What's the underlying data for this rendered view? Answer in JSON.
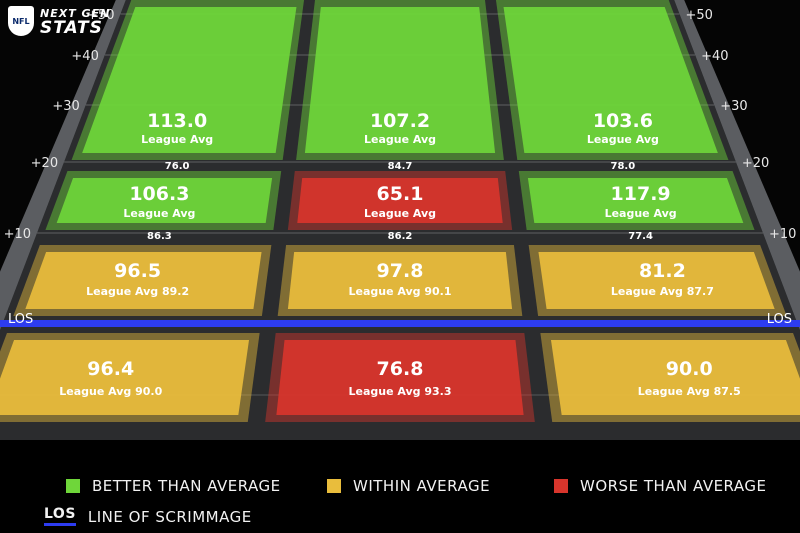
{
  "brand": {
    "logo_text": "NFL",
    "line1": "NEXT GEN",
    "line2": "STATS"
  },
  "chart_data": {
    "type": "heatmap",
    "title": "",
    "yard_markers": [
      "+50",
      "+40",
      "+30",
      "+20",
      "+10"
    ],
    "los_label": "LOS",
    "rows": [
      {
        "band": "+20 to +50",
        "zones": [
          {
            "value": "113.0",
            "league_label": "League Avg",
            "league_value": "76.0",
            "rating": "better"
          },
          {
            "value": "107.2",
            "league_label": "League Avg",
            "league_value": "84.7",
            "rating": "better"
          },
          {
            "value": "103.6",
            "league_label": "League Avg",
            "league_value": "78.0",
            "rating": "better"
          }
        ]
      },
      {
        "band": "+10 to +20",
        "zones": [
          {
            "value": "106.3",
            "league_label": "League Avg",
            "league_value": "86.3",
            "rating": "better"
          },
          {
            "value": "65.1",
            "league_label": "League Avg",
            "league_value": "86.2",
            "rating": "worse"
          },
          {
            "value": "117.9",
            "league_label": "League Avg",
            "league_value": "77.4",
            "rating": "better"
          }
        ]
      },
      {
        "band": "LOS to +10",
        "zones": [
          {
            "value": "96.5",
            "league_label": "League Avg 89.2",
            "rating": "within"
          },
          {
            "value": "97.8",
            "league_label": "League Avg 90.1",
            "rating": "within"
          },
          {
            "value": "81.2",
            "league_label": "League Avg 87.7",
            "rating": "within"
          }
        ]
      },
      {
        "band": "Behind LOS",
        "zones": [
          {
            "value": "96.4",
            "league_label": "League Avg 90.0",
            "rating": "within"
          },
          {
            "value": "76.8",
            "league_label": "League Avg 93.3",
            "rating": "worse"
          },
          {
            "value": "90.0",
            "league_label": "League Avg 87.5",
            "rating": "within"
          }
        ]
      }
    ],
    "colors": {
      "better": "#6fd63a",
      "within": "#e9bd3c",
      "worse": "#d8352c",
      "los_line": "#2d3cf0"
    }
  },
  "legend": {
    "better": "BETTER THAN AVERAGE",
    "within": "WITHIN AVERAGE",
    "worse": "WORSE THAN AVERAGE",
    "los_key": "LOS",
    "los_desc": "LINE OF SCRIMMAGE"
  }
}
